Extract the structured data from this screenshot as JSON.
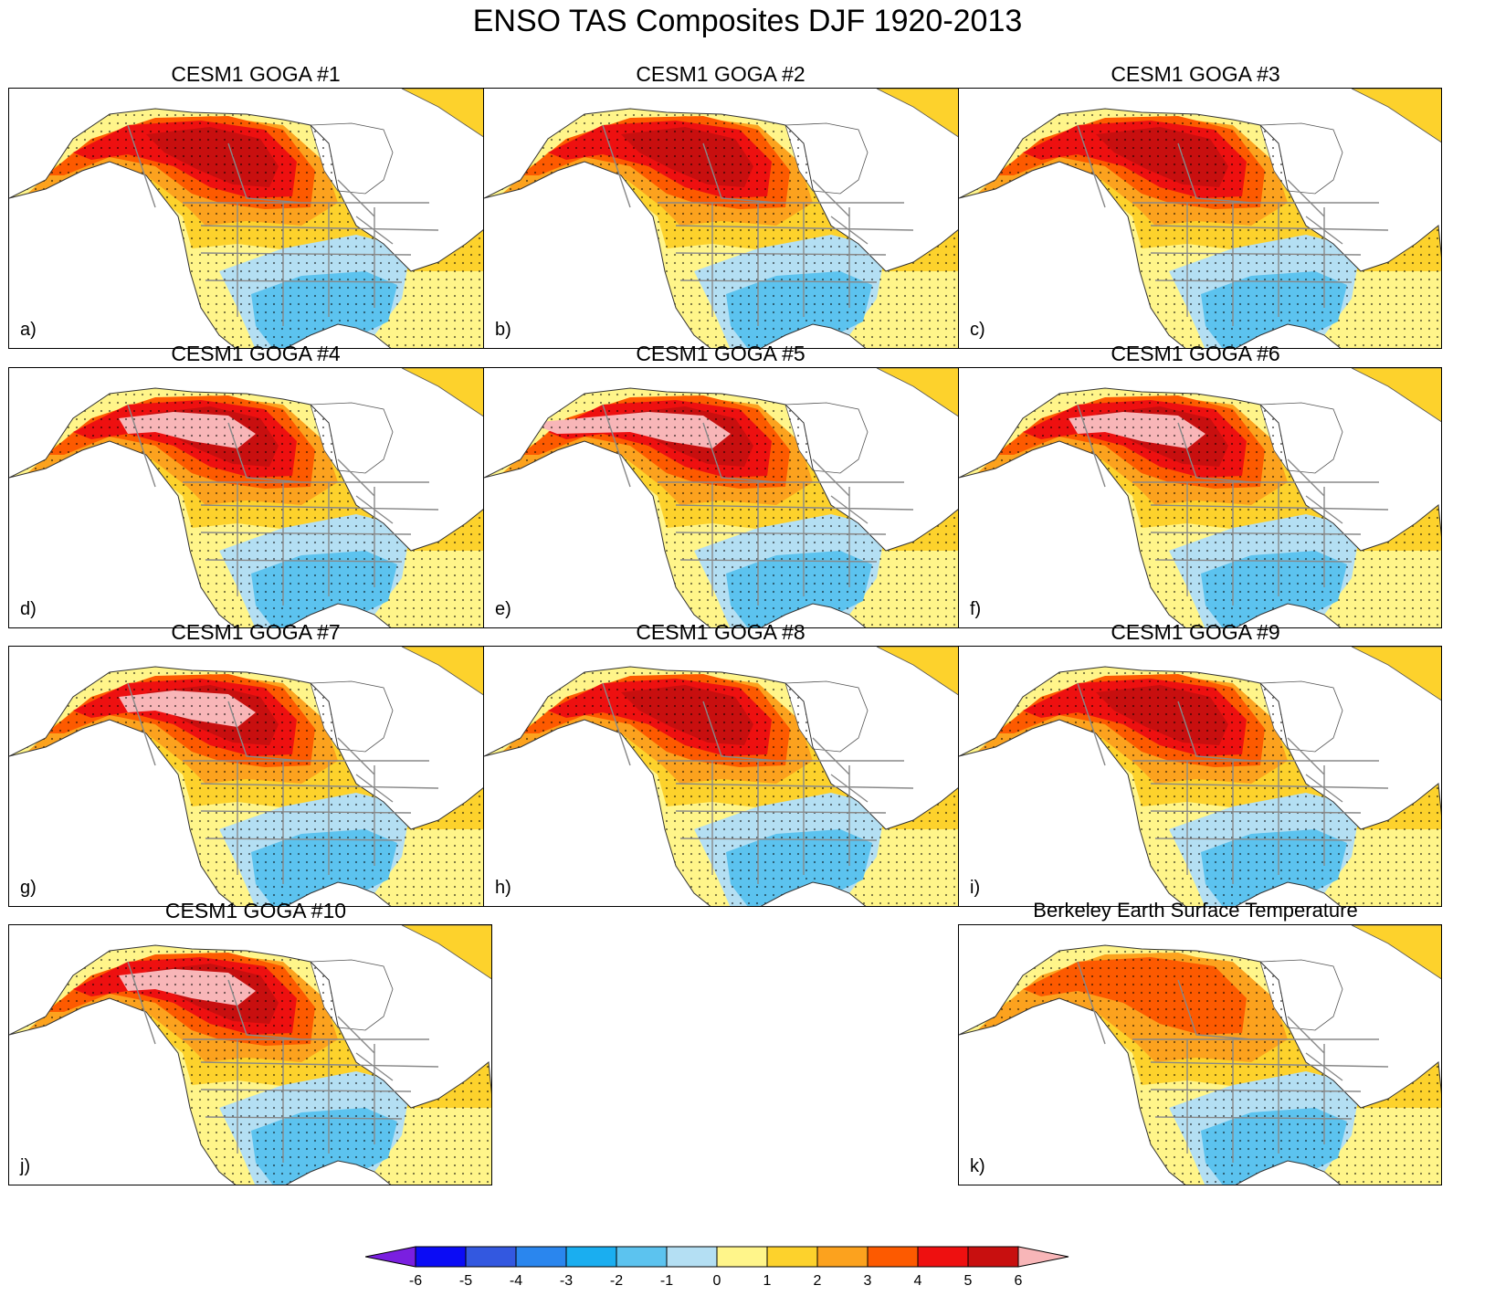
{
  "title": "ENSO TAS Composites DJF 1920-2013",
  "panels": [
    {
      "title": "CESM1 GOGA #1",
      "letter": "a)"
    },
    {
      "title": "CESM1 GOGA #2",
      "letter": "b)"
    },
    {
      "title": "CESM1 GOGA #3",
      "letter": "c)"
    },
    {
      "title": "CESM1 GOGA #4",
      "letter": "d)"
    },
    {
      "title": "CESM1 GOGA #5",
      "letter": "e)"
    },
    {
      "title": "CESM1 GOGA #6",
      "letter": "f)"
    },
    {
      "title": "CESM1 GOGA #7",
      "letter": "g)"
    },
    {
      "title": "CESM1 GOGA #8",
      "letter": "h)"
    },
    {
      "title": "CESM1 GOGA #9",
      "letter": "i)"
    },
    {
      "title": "CESM1 GOGA #10",
      "letter": "j)"
    },
    {
      "title": "Berkeley Earth Surface Temperature",
      "letter": "k)"
    }
  ],
  "colorbar": {
    "tick_labels": [
      "-6",
      "-5",
      "-4",
      "-3",
      "-2",
      "-1",
      "0",
      "1",
      "2",
      "3",
      "4",
      "5",
      "6"
    ],
    "colors": [
      "#7a1fe0",
      "#0b0cf5",
      "#3358e0",
      "#2a86ee",
      "#1aaef0",
      "#5cc3ef",
      "#b4dff3",
      "#fff58a",
      "#fdd22c",
      "#fca21e",
      "#fd5a00",
      "#ee1010",
      "#c80f0f",
      "#f8b6b8"
    ]
  }
}
